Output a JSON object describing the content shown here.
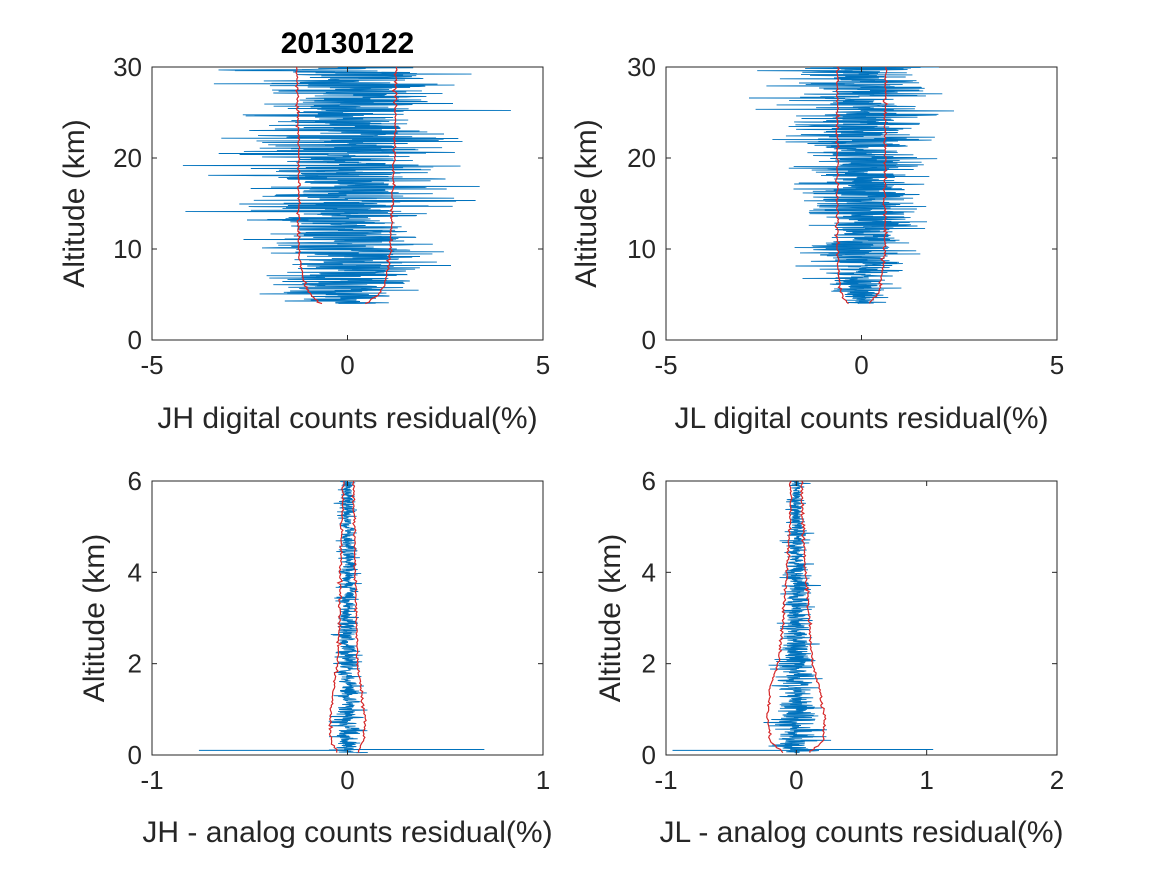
{
  "colors": {
    "residual": "#0072BD",
    "envelope": "#D62728",
    "axes": "#262626"
  },
  "chart_data": [
    {
      "type": "line",
      "title": "20130122",
      "xlabel": "JH digital counts residual(%)",
      "ylabel": "Altitude (km)",
      "xlim": [
        -5,
        5
      ],
      "ylim": [
        0,
        30
      ],
      "xticks": [
        -5,
        0,
        5
      ],
      "yticks": [
        0,
        10,
        20,
        30
      ],
      "grid": false,
      "altitude_range": [
        4,
        30
      ],
      "series": [
        {
          "values_description": "residual profile",
          "spread_std_at": [
            [
              4,
              0.75
            ],
            [
              6,
              0.95
            ],
            [
              10,
              1.15
            ],
            [
              20,
              1.25
            ],
            [
              30,
              1.3
            ]
          ],
          "mean": 0.0
        },
        {
          "envelope_upper": [
            [
              4,
              0.45
            ],
            [
              5,
              0.8
            ],
            [
              6,
              0.95
            ],
            [
              8,
              1.05
            ],
            [
              10,
              1.1
            ],
            [
              15,
              1.15
            ],
            [
              20,
              1.2
            ],
            [
              30,
              1.25
            ]
          ],
          "envelope_lower": [
            [
              4,
              -0.7
            ],
            [
              5,
              -0.95
            ],
            [
              6,
              -1.1
            ],
            [
              8,
              -1.2
            ],
            [
              10,
              -1.25
            ],
            [
              15,
              -1.25
            ],
            [
              20,
              -1.25
            ],
            [
              30,
              -1.3
            ]
          ]
        }
      ]
    },
    {
      "type": "line",
      "title": "",
      "xlabel": "JL digital counts residual(%)",
      "ylabel": "Altitude (km)",
      "xlim": [
        -5,
        5
      ],
      "ylim": [
        0,
        30
      ],
      "xticks": [
        -5,
        0,
        5
      ],
      "yticks": [
        0,
        10,
        20,
        30
      ],
      "grid": false,
      "altitude_range": [
        4,
        30
      ],
      "series": [
        {
          "values_description": "residual profile",
          "spread_std_at": [
            [
              4,
              0.35
            ],
            [
              6,
              0.5
            ],
            [
              10,
              0.65
            ],
            [
              20,
              0.85
            ],
            [
              30,
              0.95
            ]
          ],
          "mean": 0.0
        },
        {
          "envelope_upper": [
            [
              4,
              0.2
            ],
            [
              5,
              0.4
            ],
            [
              6,
              0.5
            ],
            [
              8,
              0.55
            ],
            [
              10,
              0.6
            ],
            [
              20,
              0.6
            ],
            [
              30,
              0.62
            ]
          ],
          "envelope_lower": [
            [
              4,
              -0.35
            ],
            [
              5,
              -0.5
            ],
            [
              6,
              -0.55
            ],
            [
              8,
              -0.6
            ],
            [
              10,
              -0.62
            ],
            [
              20,
              -0.62
            ],
            [
              30,
              -0.62
            ]
          ]
        }
      ]
    },
    {
      "type": "line",
      "title": "",
      "xlabel": "JH - analog counts residual(%)",
      "ylabel": "Altitude (km)",
      "xlim": [
        -1,
        1
      ],
      "ylim": [
        0,
        6
      ],
      "xticks": [
        -1,
        0,
        1
      ],
      "yticks": [
        0,
        2,
        4,
        6
      ],
      "grid": false,
      "altitude_range": [
        0.05,
        6
      ],
      "series": [
        {
          "values_description": "residual profile",
          "spread_std_at": [
            [
              0.1,
              0.04
            ],
            [
              1,
              0.035
            ],
            [
              2,
              0.03
            ],
            [
              4,
              0.025
            ],
            [
              6,
              0.02
            ]
          ],
          "mean": 0.0,
          "near_ground_extremes": [
            [
              0.1,
              -0.76
            ],
            [
              0.12,
              0.7
            ]
          ]
        },
        {
          "envelope_upper": [
            [
              0.05,
              0.05
            ],
            [
              0.3,
              0.08
            ],
            [
              0.8,
              0.09
            ],
            [
              1.5,
              0.07
            ],
            [
              2,
              0.05
            ],
            [
              3,
              0.045
            ],
            [
              4,
              0.04
            ],
            [
              5,
              0.035
            ],
            [
              6,
              0.03
            ]
          ],
          "envelope_lower": [
            [
              0.05,
              -0.05
            ],
            [
              0.3,
              -0.08
            ],
            [
              0.8,
              -0.09
            ],
            [
              1.5,
              -0.07
            ],
            [
              2,
              -0.05
            ],
            [
              3,
              -0.04
            ],
            [
              4,
              -0.035
            ],
            [
              5,
              -0.03
            ],
            [
              6,
              -0.02
            ]
          ]
        }
      ]
    },
    {
      "type": "line",
      "title": "",
      "xlabel": "JL - analog counts residual(%)",
      "ylabel": "Altitude (km)",
      "xlim": [
        -1,
        2
      ],
      "ylim": [
        0,
        6
      ],
      "xticks": [
        -1,
        0,
        1,
        2
      ],
      "yticks": [
        0,
        2,
        4,
        6
      ],
      "grid": false,
      "altitude_range": [
        0.05,
        6
      ],
      "series": [
        {
          "values_description": "residual profile",
          "spread_std_at": [
            [
              0.1,
              0.1
            ],
            [
              1,
              0.09
            ],
            [
              2,
              0.07
            ],
            [
              4,
              0.05
            ],
            [
              6,
              0.03
            ]
          ],
          "mean": 0.0,
          "near_ground_extremes": [
            [
              0.1,
              -0.95
            ],
            [
              0.12,
              1.05
            ]
          ]
        },
        {
          "envelope_upper": [
            [
              0.05,
              0.1
            ],
            [
              0.3,
              0.2
            ],
            [
              0.8,
              0.22
            ],
            [
              1.5,
              0.17
            ],
            [
              2,
              0.12
            ],
            [
              3,
              0.1
            ],
            [
              4,
              0.07
            ],
            [
              5,
              0.05
            ],
            [
              6,
              0.04
            ]
          ],
          "envelope_lower": [
            [
              0.05,
              -0.1
            ],
            [
              0.3,
              -0.2
            ],
            [
              0.8,
              -0.22
            ],
            [
              1.5,
              -0.2
            ],
            [
              2,
              -0.14
            ],
            [
              3,
              -0.1
            ],
            [
              4,
              -0.07
            ],
            [
              5,
              -0.05
            ],
            [
              6,
              -0.04
            ]
          ]
        }
      ]
    }
  ]
}
